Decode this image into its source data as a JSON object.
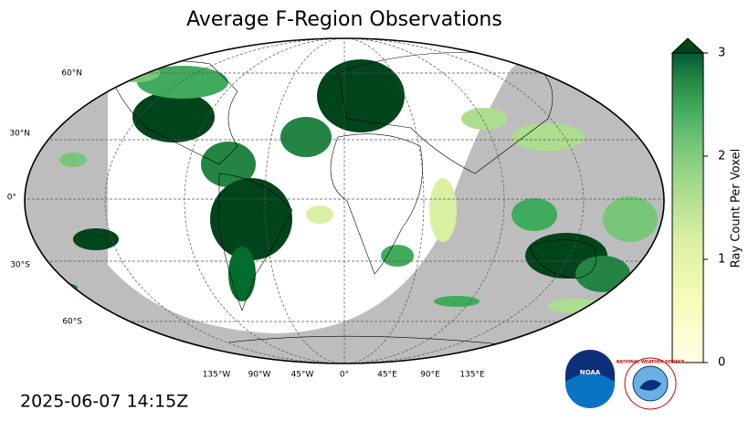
{
  "title": "Average F-Region Observations",
  "lat_labels": [
    "60°N",
    "30°N",
    "0°",
    "30°S",
    "60°S"
  ],
  "lon_labels": [
    "135°W",
    "90°W",
    "45°W",
    "0°",
    "45°E",
    "90°E",
    "135°E"
  ],
  "colorbar": {
    "label": "Ray Count Per Voxel",
    "lim": [
      0,
      3
    ],
    "ticks": [
      0,
      1,
      2,
      3
    ]
  },
  "timestamp": "2025-06-07 14:15Z",
  "logos": {
    "noaa": "NOAA",
    "nws": "NATIONAL WEATHER SERVICE"
  }
}
